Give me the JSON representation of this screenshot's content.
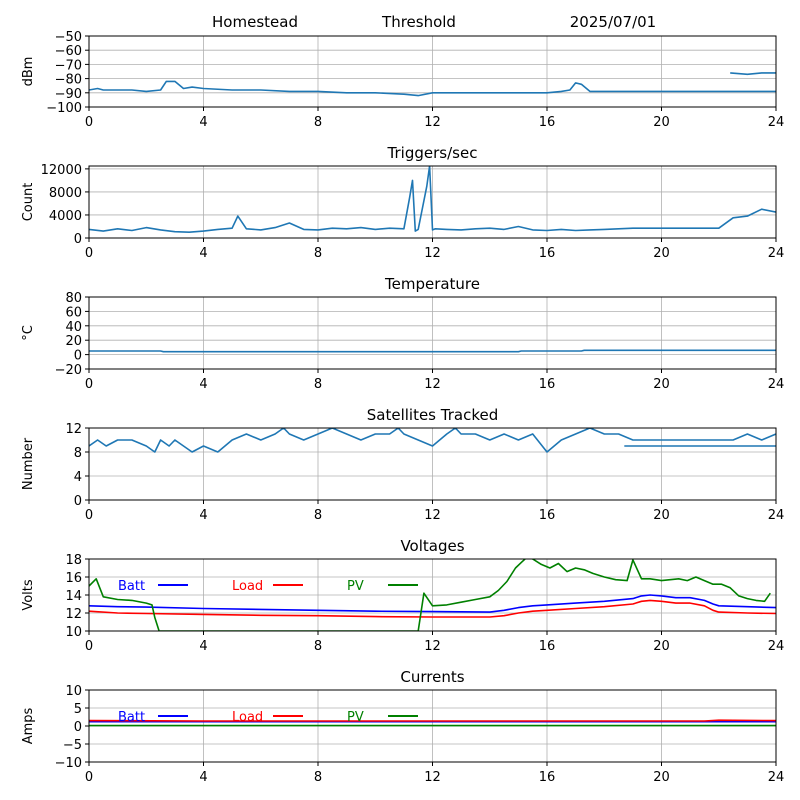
{
  "header": {
    "site": "Homestead",
    "threshold_label": "Threshold",
    "date": "2025/07/01"
  },
  "colors": {
    "default_series": "#1f77b4",
    "batt": "#0000ff",
    "load": "#ff0000",
    "pv": "#008000",
    "grid": "#b0b0b0"
  },
  "chart_data": [
    {
      "type": "line",
      "title": "",
      "ylabel": "dBm",
      "xlim": [
        0,
        24
      ],
      "ylim": [
        -100,
        -50
      ],
      "xticks": [
        0,
        4,
        8,
        12,
        16,
        20,
        24
      ],
      "yticks": [
        -100,
        -90,
        -80,
        -70,
        -60,
        -50
      ],
      "ytick_labels": [
        "−100",
        "−90",
        "−80",
        "−70",
        "−60",
        "−50"
      ],
      "grid": true,
      "series": [
        {
          "color": "#1f77b4",
          "x": [
            0,
            0.3,
            0.5,
            1,
            1.5,
            2,
            2.5,
            2.7,
            3,
            3.3,
            3.6,
            4,
            5,
            6,
            7,
            8,
            9,
            10,
            11,
            11.5,
            12,
            13,
            14,
            15,
            16,
            16.5,
            16.8,
            17,
            17.2,
            17.5,
            18,
            19,
            20,
            21,
            22,
            23,
            24
          ],
          "y": [
            -88,
            -87,
            -88,
            -88,
            -88,
            -89,
            -88,
            -82,
            -82,
            -87,
            -86,
            -87,
            -88,
            -88,
            -89,
            -89,
            -90,
            -90,
            -91,
            -92,
            -90,
            -90,
            -90,
            -90,
            -90,
            -89,
            -88,
            -83,
            -84,
            -89,
            -89,
            -89,
            -89,
            -89,
            -89,
            -89,
            -89
          ]
        },
        {
          "color": "#1f77b4",
          "x": [
            22.4,
            23,
            23.5,
            24
          ],
          "y": [
            -76,
            -77,
            -76,
            -76
          ]
        }
      ]
    },
    {
      "type": "line",
      "title": "Triggers/sec",
      "ylabel": "Count",
      "xlim": [
        0,
        24
      ],
      "ylim": [
        0,
        12500
      ],
      "xticks": [
        0,
        4,
        8,
        12,
        16,
        20,
        24
      ],
      "yticks": [
        0,
        4000,
        8000,
        12000
      ],
      "ytick_labels": [
        "0",
        "4000",
        "8000",
        "12000"
      ],
      "grid": true,
      "series": [
        {
          "color": "#1f77b4",
          "x": [
            0,
            0.5,
            1,
            1.5,
            2,
            2.5,
            3,
            3.5,
            4,
            4.5,
            5,
            5.2,
            5.5,
            6,
            6.5,
            7,
            7.5,
            8,
            8.5,
            9,
            9.5,
            10,
            10.5,
            11,
            11.2,
            11.3,
            11.4,
            11.5,
            11.8,
            11.9,
            12,
            12.1,
            12.5,
            13,
            13.5,
            14,
            14.5,
            15,
            15.5,
            16,
            16.5,
            17,
            17.5,
            18,
            18.5,
            19,
            19.5,
            20,
            20.5,
            21,
            21.5,
            22,
            22.5,
            23,
            23.5,
            24
          ],
          "y": [
            1500,
            1200,
            1600,
            1300,
            1800,
            1400,
            1100,
            1000,
            1200,
            1500,
            1700,
            3800,
            1600,
            1400,
            1800,
            2600,
            1500,
            1400,
            1700,
            1600,
            1800,
            1500,
            1700,
            1600,
            7000,
            10000,
            1200,
            1500,
            9000,
            12500,
            1400,
            1600,
            1500,
            1400,
            1600,
            1700,
            1500,
            2000,
            1400,
            1300,
            1500,
            1300,
            1400,
            1500,
            1600,
            1700,
            1700,
            1700,
            1700,
            1700,
            1700,
            1700,
            3500,
            3800,
            5000,
            4500
          ]
        }
      ]
    },
    {
      "type": "line",
      "title": "Temperature",
      "ylabel": "°C",
      "xlim": [
        0,
        24
      ],
      "ylim": [
        -20,
        80
      ],
      "xticks": [
        0,
        4,
        8,
        12,
        16,
        20,
        24
      ],
      "yticks": [
        -20,
        0,
        20,
        40,
        60,
        80
      ],
      "ytick_labels": [
        "−20",
        "0",
        "20",
        "40",
        "60",
        "80"
      ],
      "grid": true,
      "series": [
        {
          "color": "#1f77b4",
          "x": [
            0,
            2.5,
            2.6,
            15,
            15.1,
            17.2,
            17.3,
            24
          ],
          "y": [
            5,
            5,
            4,
            4,
            5,
            5,
            6,
            6
          ]
        }
      ]
    },
    {
      "type": "line",
      "title": "Satellites Tracked",
      "ylabel": "Number",
      "xlim": [
        0,
        24
      ],
      "ylim": [
        0,
        12
      ],
      "xticks": [
        0,
        4,
        8,
        12,
        16,
        20,
        24
      ],
      "yticks": [
        0,
        4,
        8,
        12
      ],
      "ytick_labels": [
        "0",
        "4",
        "8",
        "12"
      ],
      "grid": true,
      "series": [
        {
          "color": "#1f77b4",
          "x": [
            0,
            0.3,
            0.6,
            1,
            1.5,
            2,
            2.3,
            2.5,
            2.8,
            3,
            3.3,
            3.6,
            4,
            4.5,
            5,
            5.5,
            6,
            6.5,
            6.8,
            7,
            7.5,
            8,
            8.5,
            9,
            9.5,
            10,
            10.5,
            10.8,
            11,
            11.5,
            12,
            12.5,
            12.8,
            13,
            13.5,
            14,
            14.5,
            15,
            15.5,
            16,
            16.5,
            17,
            17.5,
            18,
            18.5,
            19,
            19.5,
            20,
            20.5,
            21,
            21.5,
            22,
            22.5,
            23,
            23.5,
            24
          ],
          "y": [
            9,
            10,
            9,
            10,
            10,
            9,
            8,
            10,
            9,
            10,
            9,
            8,
            9,
            8,
            10,
            11,
            10,
            11,
            12,
            11,
            10,
            11,
            12,
            11,
            10,
            11,
            11,
            12,
            11,
            10,
            9,
            11,
            12,
            11,
            11,
            10,
            11,
            10,
            11,
            8,
            10,
            11,
            12,
            11,
            11,
            10,
            10,
            10,
            10,
            10,
            10,
            10,
            10,
            11,
            10,
            11
          ]
        },
        {
          "color": "#1f77b4",
          "x": [
            18.7,
            24
          ],
          "y": [
            9,
            9
          ]
        }
      ]
    },
    {
      "type": "line",
      "title": "Voltages",
      "ylabel": "Volts",
      "xlim": [
        0,
        24
      ],
      "ylim": [
        10,
        18
      ],
      "xticks": [
        0,
        4,
        8,
        12,
        16,
        20,
        24
      ],
      "yticks": [
        10,
        12,
        14,
        16,
        18
      ],
      "ytick_labels": [
        "10",
        "12",
        "14",
        "16",
        "18"
      ],
      "grid": true,
      "legend_position": "top-left",
      "series": [
        {
          "name": "Batt",
          "color": "#0000ff",
          "x": [
            0,
            1,
            2,
            4,
            6,
            8,
            10,
            12,
            14,
            14.5,
            15,
            15.5,
            16,
            17,
            18,
            19,
            19.3,
            19.6,
            20,
            20.5,
            21,
            21.5,
            21.8,
            22,
            23,
            24
          ],
          "y": [
            12.8,
            12.7,
            12.65,
            12.5,
            12.4,
            12.3,
            12.2,
            12.15,
            12.1,
            12.3,
            12.6,
            12.8,
            12.9,
            13.1,
            13.3,
            13.6,
            13.9,
            14.0,
            13.9,
            13.7,
            13.7,
            13.4,
            13.0,
            12.8,
            12.7,
            12.6
          ]
        },
        {
          "name": "Load",
          "color": "#ff0000",
          "x": [
            0,
            1,
            2,
            4,
            6,
            8,
            10,
            12,
            14,
            14.5,
            15,
            15.5,
            16,
            17,
            18,
            19,
            19.3,
            19.6,
            20,
            20.5,
            21,
            21.5,
            21.8,
            22,
            23,
            24
          ],
          "y": [
            12.2,
            12.0,
            11.95,
            11.85,
            11.75,
            11.7,
            11.6,
            11.55,
            11.55,
            11.7,
            12.0,
            12.2,
            12.3,
            12.5,
            12.7,
            13.0,
            13.3,
            13.4,
            13.3,
            13.1,
            13.1,
            12.8,
            12.3,
            12.1,
            12.0,
            11.95
          ]
        },
        {
          "name": "PV",
          "color": "#008000",
          "x": [
            0,
            0.25,
            0.5,
            1,
            1.5,
            2,
            2.2,
            2.3,
            2.45,
            11.5,
            11.7,
            12,
            12.5,
            13,
            13.5,
            14,
            14.3,
            14.6,
            14.9,
            15.1,
            15.3,
            15.5,
            15.8,
            16.1,
            16.4,
            16.7,
            17,
            17.3,
            17.6,
            18,
            18.4,
            18.8,
            19.0,
            19.3,
            19.6,
            20,
            20.3,
            20.6,
            20.9,
            21.2,
            21.5,
            21.8,
            22.1,
            22.4,
            22.7,
            23,
            23.3,
            23.6,
            23.8
          ],
          "y": [
            15.0,
            15.8,
            13.8,
            13.5,
            13.4,
            13.1,
            12.9,
            11.5,
            10.0,
            10.0,
            14.2,
            12.8,
            12.9,
            13.2,
            13.5,
            13.8,
            14.5,
            15.5,
            17.0,
            17.6,
            18.2,
            18.0,
            17.4,
            17.0,
            17.5,
            16.6,
            17.0,
            16.8,
            16.4,
            16.0,
            15.7,
            15.6,
            17.9,
            15.8,
            15.8,
            15.6,
            15.7,
            15.8,
            15.6,
            16.0,
            15.6,
            15.2,
            15.2,
            14.8,
            13.9,
            13.6,
            13.4,
            13.3,
            14.2
          ]
        }
      ]
    },
    {
      "type": "line",
      "title": "Currents",
      "ylabel": "Amps",
      "xlim": [
        0,
        24
      ],
      "ylim": [
        -10,
        10
      ],
      "xticks": [
        0,
        4,
        8,
        12,
        16,
        20,
        24
      ],
      "yticks": [
        -10,
        -5,
        0,
        5,
        10
      ],
      "ytick_labels": [
        "−10",
        "−5",
        "0",
        "5",
        "10"
      ],
      "grid": true,
      "legend_position": "top-left",
      "series": [
        {
          "name": "Batt",
          "color": "#0000ff",
          "x": [
            0,
            24
          ],
          "y": [
            1.2,
            1.2
          ]
        },
        {
          "name": "Load",
          "color": "#ff0000",
          "x": [
            0,
            4,
            8,
            12,
            16,
            20,
            21.5,
            22,
            24
          ],
          "y": [
            1.5,
            1.4,
            1.4,
            1.4,
            1.4,
            1.4,
            1.4,
            1.6,
            1.5
          ]
        },
        {
          "name": "PV",
          "color": "#008000",
          "x": [
            0,
            24
          ],
          "y": [
            0.1,
            0.1
          ]
        }
      ]
    }
  ]
}
